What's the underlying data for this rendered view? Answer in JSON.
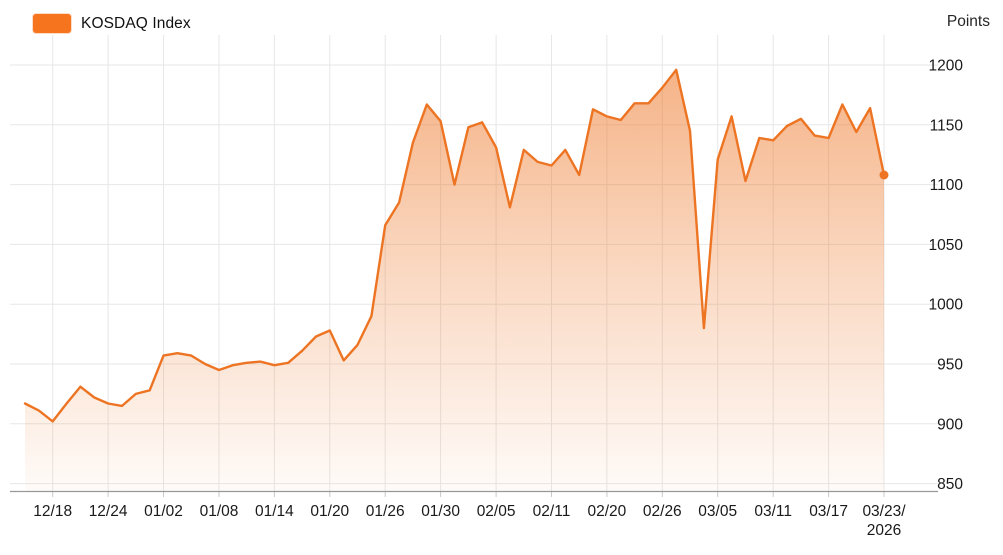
{
  "legend": {
    "label": "KOSDAQ Index",
    "swatch_color": "#f5741d"
  },
  "header": {
    "unit_label": "Points"
  },
  "chart_data": {
    "type": "area",
    "title": "KOSDAQ Index",
    "ylabel": "Points",
    "ylim": [
      850,
      1200
    ],
    "grid": true,
    "legend_position": "top-left",
    "last_point_marker": true,
    "y_ticks": [
      850,
      900,
      950,
      1000,
      1050,
      1100,
      1150,
      1200
    ],
    "x_ticks": [
      {
        "i": 2,
        "label": "12/18"
      },
      {
        "i": 6,
        "label": "12/24"
      },
      {
        "i": 10,
        "label": "01/02"
      },
      {
        "i": 14,
        "label": "01/08"
      },
      {
        "i": 18,
        "label": "01/14"
      },
      {
        "i": 22,
        "label": "01/20"
      },
      {
        "i": 26,
        "label": "01/26"
      },
      {
        "i": 30,
        "label": "01/30"
      },
      {
        "i": 34,
        "label": "02/05"
      },
      {
        "i": 38,
        "label": "02/11"
      },
      {
        "i": 42,
        "label": "02/20"
      },
      {
        "i": 46,
        "label": "02/26"
      },
      {
        "i": 50,
        "label": "03/05"
      },
      {
        "i": 54,
        "label": "03/11"
      },
      {
        "i": 58,
        "label": "03/17"
      },
      {
        "i": 62,
        "label": "03/23/",
        "label_line2": "2026"
      }
    ],
    "series": [
      {
        "name": "KOSDAQ Index",
        "color": "#ed7423",
        "values": [
          917,
          911,
          902,
          917,
          931,
          922,
          917,
          915,
          925,
          928,
          957,
          959,
          957,
          950,
          945,
          949,
          951,
          952,
          949,
          951,
          961,
          973,
          978,
          953,
          966,
          990,
          1066,
          1085,
          1135,
          1167,
          1153,
          1100,
          1148,
          1152,
          1131,
          1081,
          1129,
          1119,
          1116,
          1129,
          1108,
          1163,
          1157,
          1154,
          1168,
          1168,
          1181,
          1196,
          1145,
          980,
          1121,
          1157,
          1103,
          1139,
          1137,
          1149,
          1155,
          1141,
          1139,
          1167,
          1144,
          1164,
          1108
        ]
      }
    ]
  }
}
